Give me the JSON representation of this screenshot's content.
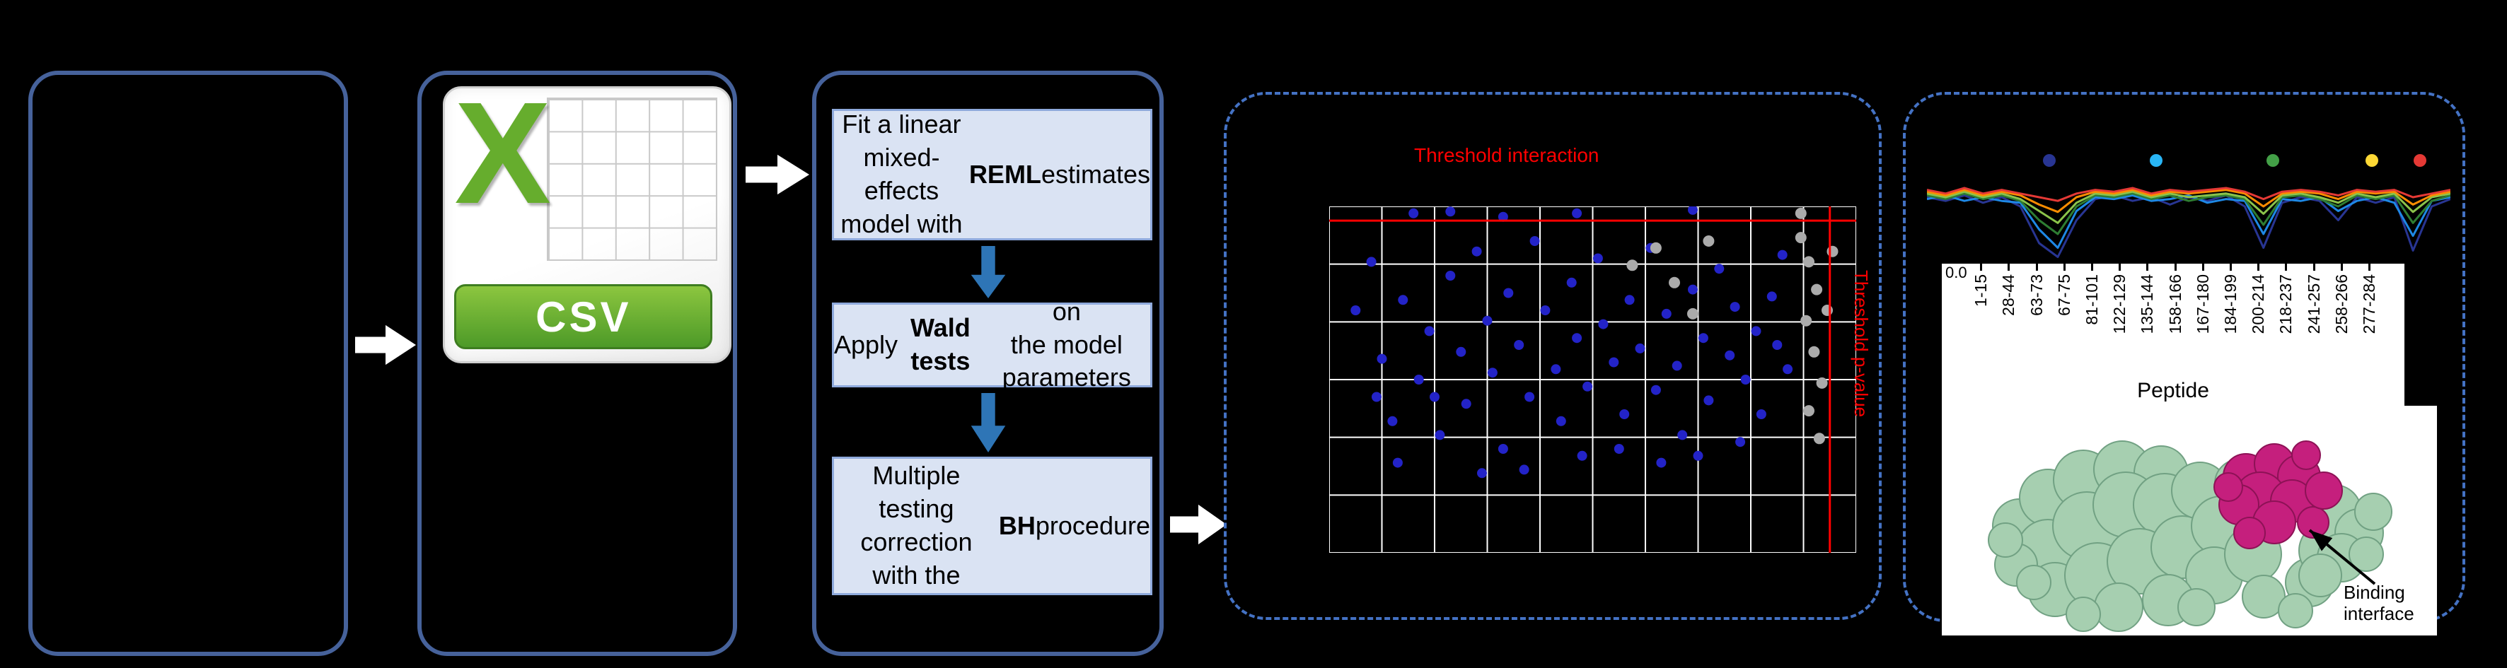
{
  "csv": {
    "x": "X",
    "label": "CSV"
  },
  "steps": [
    {
      "segments": [
        {
          "text": "Fit a linear mixed-\neffects model with\n",
          "bold": false
        },
        {
          "text": "REML",
          "bold": true
        },
        {
          "text": " estimates",
          "bold": false
        }
      ]
    },
    {
      "segments": [
        {
          "text": "Apply ",
          "bold": false
        },
        {
          "text": "Wald tests",
          "bold": true
        },
        {
          "text": " on\nthe model parameters",
          "bold": false
        }
      ]
    },
    {
      "segments": [
        {
          "text": "Multiple testing\ncorrection\nwith the ",
          "bold": false
        },
        {
          "text": "BH",
          "bold": true
        },
        {
          "text": " procedure",
          "bold": false
        }
      ]
    }
  ],
  "chart_data": [
    {
      "type": "scatter",
      "annotations": {
        "y_threshold_label": "Threshold interaction",
        "x_threshold_label": "Threshold p-value"
      },
      "threshold": {
        "y_frac": 0.041,
        "x_frac": 0.95
      },
      "grid": {
        "cols": 10,
        "rows": 6
      },
      "series": [
        {
          "color": "#2323c8",
          "radius": 7,
          "points": [
            [
              0.05,
              0.3
            ],
            [
              0.08,
              0.16
            ],
            [
              0.1,
              0.44
            ],
            [
              0.12,
              0.62
            ],
            [
              0.14,
              0.27
            ],
            [
              0.16,
              0.02
            ],
            [
              0.17,
              0.5
            ],
            [
              0.19,
              0.36
            ],
            [
              0.21,
              0.66
            ],
            [
              0.23,
              0.015
            ],
            [
              0.23,
              0.2
            ],
            [
              0.25,
              0.42
            ],
            [
              0.26,
              0.57
            ],
            [
              0.28,
              0.13
            ],
            [
              0.3,
              0.33
            ],
            [
              0.31,
              0.48
            ],
            [
              0.33,
              0.7
            ],
            [
              0.33,
              0.03
            ],
            [
              0.34,
              0.25
            ],
            [
              0.36,
              0.4
            ],
            [
              0.38,
              0.55
            ],
            [
              0.39,
              0.1
            ],
            [
              0.41,
              0.3
            ],
            [
              0.43,
              0.47
            ],
            [
              0.44,
              0.62
            ],
            [
              0.46,
              0.22
            ],
            [
              0.47,
              0.02
            ],
            [
              0.47,
              0.38
            ],
            [
              0.49,
              0.52
            ],
            [
              0.51,
              0.15
            ],
            [
              0.52,
              0.34
            ],
            [
              0.54,
              0.45
            ],
            [
              0.56,
              0.6
            ],
            [
              0.57,
              0.27
            ],
            [
              0.59,
              0.41
            ],
            [
              0.61,
              0.12
            ],
            [
              0.62,
              0.53
            ],
            [
              0.64,
              0.31
            ],
            [
              0.66,
              0.46
            ],
            [
              0.67,
              0.66
            ],
            [
              0.69,
              0.01
            ],
            [
              0.69,
              0.24
            ],
            [
              0.71,
              0.38
            ],
            [
              0.72,
              0.56
            ],
            [
              0.74,
              0.18
            ],
            [
              0.76,
              0.43
            ],
            [
              0.77,
              0.29
            ],
            [
              0.79,
              0.5
            ],
            [
              0.81,
              0.36
            ],
            [
              0.82,
              0.6
            ],
            [
              0.84,
              0.26
            ],
            [
              0.86,
              0.14
            ],
            [
              0.87,
              0.47
            ],
            [
              0.13,
              0.74
            ],
            [
              0.29,
              0.77
            ],
            [
              0.48,
              0.72
            ],
            [
              0.63,
              0.74
            ],
            [
              0.78,
              0.68
            ],
            [
              0.37,
              0.76
            ],
            [
              0.55,
              0.7
            ],
            [
              0.2,
              0.55
            ],
            [
              0.09,
              0.55
            ],
            [
              0.85,
              0.4
            ],
            [
              0.7,
              0.72
            ]
          ]
        },
        {
          "color": "#ababab",
          "radius": 8,
          "points": [
            [
              0.575,
              0.17
            ],
            [
              0.62,
              0.12
            ],
            [
              0.655,
              0.22
            ],
            [
              0.69,
              0.31
            ],
            [
              0.72,
              0.1
            ],
            [
              0.895,
              0.02
            ],
            [
              0.895,
              0.09
            ],
            [
              0.91,
              0.16
            ],
            [
              0.925,
              0.24
            ],
            [
              0.905,
              0.33
            ],
            [
              0.92,
              0.42
            ],
            [
              0.935,
              0.51
            ],
            [
              0.91,
              0.59
            ],
            [
              0.945,
              0.3
            ],
            [
              0.955,
              0.13
            ],
            [
              0.93,
              0.67
            ]
          ]
        }
      ]
    },
    {
      "type": "line",
      "categories": [
        "1-15",
        "28-44",
        "63-73",
        "67-75",
        "81-101",
        "122-129",
        "135-144",
        "158-166",
        "167-180",
        "184-199",
        "200-214",
        "218-237",
        "241-257",
        "258-266",
        "277-284"
      ],
      "xlabel": "Peptide",
      "ytick_visible": "0.0",
      "markers": [
        {
          "x": 0.234,
          "color": "#283593"
        },
        {
          "x": 0.438,
          "color": "#29b6f6"
        },
        {
          "x": 0.661,
          "color": "#43a047"
        },
        {
          "x": 0.85,
          "color": "#fdd835"
        },
        {
          "x": 0.942,
          "color": "#e53935"
        }
      ],
      "series": [
        {
          "color": "#283593",
          "values": [
            0.3,
            0.34,
            0.28,
            0.36,
            0.3,
            0.4,
            0.8,
            0.95,
            0.55,
            0.32,
            0.28,
            0.34,
            0.3,
            0.38,
            0.3,
            0.34,
            0.28,
            0.4,
            0.85,
            0.36,
            0.3,
            0.34,
            0.55,
            0.3,
            0.36,
            0.3,
            0.88,
            0.4,
            0.32
          ]
        },
        {
          "color": "#1e88e5",
          "values": [
            0.32,
            0.28,
            0.34,
            0.3,
            0.34,
            0.36,
            0.65,
            0.85,
            0.45,
            0.3,
            0.32,
            0.28,
            0.34,
            0.32,
            0.28,
            0.36,
            0.32,
            0.34,
            0.7,
            0.32,
            0.34,
            0.3,
            0.45,
            0.34,
            0.3,
            0.36,
            0.72,
            0.34,
            0.3
          ]
        },
        {
          "color": "#2e7d32",
          "values": [
            0.28,
            0.32,
            0.26,
            0.32,
            0.28,
            0.34,
            0.55,
            0.7,
            0.4,
            0.28,
            0.3,
            0.26,
            0.32,
            0.28,
            0.34,
            0.3,
            0.28,
            0.32,
            0.6,
            0.3,
            0.28,
            0.32,
            0.4,
            0.28,
            0.32,
            0.28,
            0.58,
            0.34,
            0.28
          ]
        },
        {
          "color": "#8bc34a",
          "values": [
            0.26,
            0.3,
            0.24,
            0.3,
            0.26,
            0.32,
            0.45,
            0.58,
            0.36,
            0.26,
            0.28,
            0.24,
            0.3,
            0.26,
            0.3,
            0.28,
            0.26,
            0.3,
            0.48,
            0.28,
            0.26,
            0.3,
            0.36,
            0.26,
            0.3,
            0.26,
            0.46,
            0.3,
            0.26
          ]
        },
        {
          "color": "#fb8c00",
          "values": [
            0.24,
            0.28,
            0.22,
            0.28,
            0.24,
            0.28,
            0.38,
            0.46,
            0.3,
            0.24,
            0.26,
            0.22,
            0.28,
            0.24,
            0.26,
            0.24,
            0.22,
            0.26,
            0.4,
            0.26,
            0.24,
            0.26,
            0.32,
            0.24,
            0.26,
            0.24,
            0.38,
            0.28,
            0.24
          ]
        },
        {
          "color": "#e53935",
          "values": [
            0.22,
            0.26,
            0.2,
            0.26,
            0.22,
            0.26,
            0.3,
            0.34,
            0.26,
            0.22,
            0.24,
            0.2,
            0.26,
            0.22,
            0.24,
            0.22,
            0.2,
            0.24,
            0.32,
            0.24,
            0.22,
            0.24,
            0.28,
            0.22,
            0.24,
            0.22,
            0.3,
            0.26,
            0.22
          ]
        }
      ]
    }
  ],
  "protein": {
    "binding_label": "Binding\ninterface"
  },
  "colors": {
    "background": "#000000",
    "solid_border": "#46629b",
    "dashed_border": "#4472c4",
    "step_fill": "#dae3f3",
    "step_border": "#8faadc",
    "arrow_white": "#ffffff",
    "arrow_blue": "#2e75b6",
    "threshold_red": "#ff0000",
    "point_blue": "#2323c8",
    "point_gray": "#ababab",
    "csv_green": "#66ad2d",
    "protein_green": "#a6cfb0",
    "protein_magenta": "#c51f7d"
  }
}
